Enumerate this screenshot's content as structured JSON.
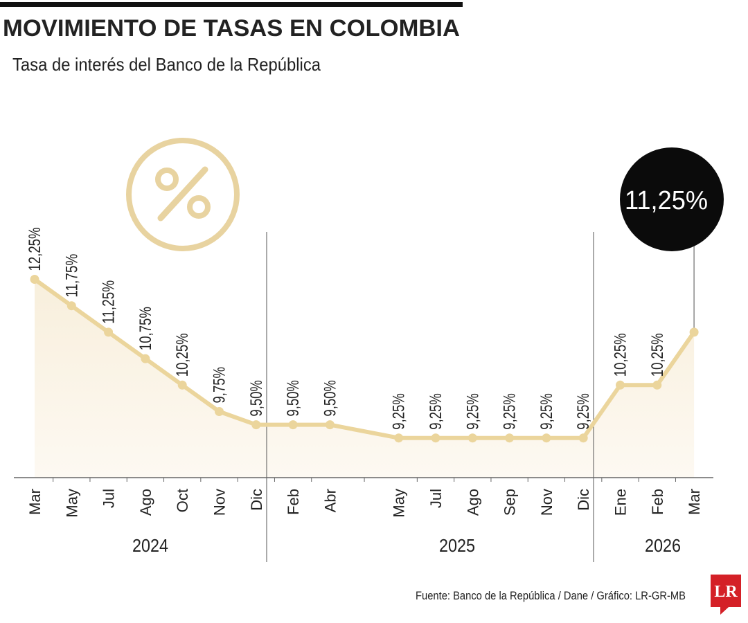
{
  "chart_data": {
    "type": "line",
    "title": "MOVIMIENTO DE TASAS EN COLOMBIA",
    "subtitle": "Tasa de interés del Banco de la República",
    "categories": [
      "Mar",
      "May",
      "Jul",
      "Ago",
      "Oct",
      "Nov",
      "Dic",
      "Feb",
      "Abr",
      "May",
      "Jul",
      "Ago",
      "Sep",
      "Nov",
      "Dic",
      "Ene",
      "Feb",
      "Mar"
    ],
    "values": [
      12.25,
      11.75,
      11.25,
      10.75,
      10.25,
      9.75,
      9.5,
      9.5,
      9.5,
      9.25,
      9.25,
      9.25,
      9.25,
      9.25,
      9.25,
      10.25,
      10.25,
      11.25
    ],
    "value_labels": [
      "12,25%",
      "11,75%",
      "11,25%",
      "10,75%",
      "10,25%",
      "9,75%",
      "9,50%",
      "9,50%",
      "9,50%",
      "9,25%",
      "9,25%",
      "9,25%",
      "9,25%",
      "9,25%",
      "9,25%",
      "10,25%",
      "10,25%",
      "11,25%"
    ],
    "years": [
      "2024",
      "2025",
      "2026"
    ],
    "color": "#ebd59c",
    "ylim": [
      8.5,
      13.5
    ],
    "source": "Fuente: Banco de la República / Dane / Gráfico: LR-GR-MB",
    "logo": "LR"
  }
}
